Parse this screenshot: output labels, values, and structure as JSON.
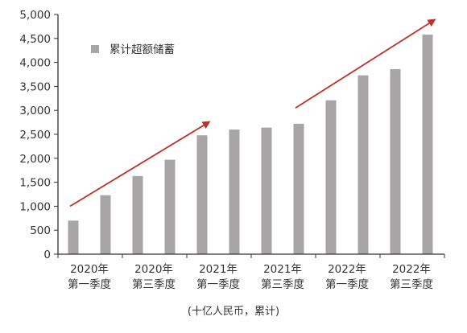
{
  "chart_data": {
    "type": "bar",
    "title": "",
    "unit_note": "(十亿人民币，累计)",
    "legend": {
      "label": "累计超额储蓄",
      "position": "top-left"
    },
    "ylim": [
      0,
      5000
    ],
    "yticks": [
      "0",
      "500",
      "1,000",
      "1,500",
      "2,000",
      "2,500",
      "3,000",
      "3,500",
      "4,000",
      "4,500",
      "5,000"
    ],
    "ytick_values": [
      0,
      500,
      1000,
      1500,
      2000,
      2500,
      3000,
      3500,
      4000,
      4500,
      5000
    ],
    "x_labels": [
      {
        "year": "2020年",
        "quarter": "第一季度"
      },
      {
        "year": "2020年",
        "quarter": "第三季度"
      },
      {
        "year": "2021年",
        "quarter": "第一季度"
      },
      {
        "year": "2021年",
        "quarter": "第三季度"
      },
      {
        "year": "2022年",
        "quarter": "第一季度"
      },
      {
        "year": "2022年",
        "quarter": "第三季度"
      }
    ],
    "series": [
      {
        "name": "累计超额储蓄",
        "values": [
          700,
          1230,
          1630,
          1970,
          2480,
          2600,
          2640,
          2720,
          3210,
          3730,
          3860,
          4580
        ]
      }
    ],
    "trend_arrows": [
      {
        "from_value": 1000,
        "to_value": 2750,
        "from_bar": 0,
        "to_bar": 4
      },
      {
        "from_value": 3050,
        "to_value": 4880,
        "from_bar": 7,
        "to_bar": 11
      }
    ],
    "colors": {
      "bar": "#a8a5a7",
      "arrow": "#c0302b",
      "axis": "#333333"
    },
    "grid": false
  }
}
